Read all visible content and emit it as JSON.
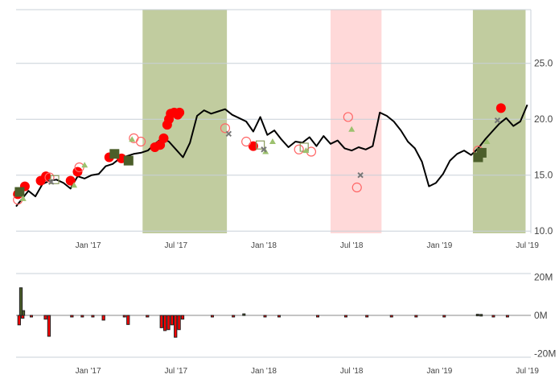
{
  "chart_data": [
    {
      "type": "line",
      "title": "",
      "xlabel": "",
      "ylabel": "",
      "x_ticks": [
        "Jan '17",
        "Jul '17",
        "Jan '18",
        "Jul '18",
        "Jan '19",
        "Jul '19"
      ],
      "x_tick_positions": [
        2017.0,
        2017.5,
        2018.0,
        2018.5,
        2019.0,
        2019.5
      ],
      "xlim": [
        2016.59,
        2019.52
      ],
      "y_ticks": [
        "10.0",
        "15.0",
        "20.0",
        "25.0"
      ],
      "y_tick_values": [
        10,
        15,
        20,
        25
      ],
      "ylim": [
        9.8,
        29.8
      ],
      "grid": true,
      "shaded_regions": [
        {
          "start": 2017.31,
          "end": 2017.79,
          "color": "#c1cc9f"
        },
        {
          "start": 2018.38,
          "end": 2018.67,
          "color": "#ffd9d9"
        },
        {
          "start": 2019.19,
          "end": 2019.49,
          "color": "#c1cc9f"
        }
      ],
      "series": [
        {
          "color": "#000000",
          "x": [
            2016.59,
            2016.62,
            2016.66,
            2016.7,
            2016.74,
            2016.78,
            2016.82,
            2016.86,
            2016.9,
            2016.94,
            2016.98,
            2017.02,
            2017.06,
            2017.1,
            2017.14,
            2017.18,
            2017.22,
            2017.26,
            2017.3,
            2017.34,
            2017.38,
            2017.42,
            2017.46,
            2017.5,
            2017.54,
            2017.58,
            2017.62,
            2017.66,
            2017.7,
            2017.74,
            2017.78,
            2017.82,
            2017.86,
            2017.9,
            2017.94,
            2017.98,
            2018.02,
            2018.06,
            2018.1,
            2018.14,
            2018.18,
            2018.22,
            2018.26,
            2018.3,
            2018.34,
            2018.38,
            2018.42,
            2018.46,
            2018.5,
            2018.54,
            2018.58,
            2018.62,
            2018.66,
            2018.7,
            2018.74,
            2018.78,
            2018.82,
            2018.86,
            2018.9,
            2018.94,
            2018.98,
            2019.02,
            2019.06,
            2019.1,
            2019.14,
            2019.18,
            2019.22,
            2019.26,
            2019.3,
            2019.34,
            2019.38,
            2019.42,
            2019.46,
            2019.5
          ],
          "y": [
            12.2,
            12.8,
            13.6,
            13.1,
            14.2,
            14.5,
            14.6,
            14.3,
            13.8,
            14.9,
            14.7,
            15.0,
            15.1,
            15.8,
            16.0,
            16.5,
            16.7,
            16.9,
            17.0,
            17.2,
            17.8,
            18.3,
            18.0,
            17.3,
            16.6,
            17.9,
            20.3,
            20.8,
            20.5,
            20.7,
            20.9,
            20.4,
            20.1,
            19.8,
            18.9,
            20.2,
            18.6,
            19.0,
            18.2,
            17.5,
            18.0,
            17.9,
            18.4,
            17.6,
            18.5,
            17.8,
            18.1,
            17.4,
            17.2,
            17.5,
            17.3,
            17.6,
            20.6,
            20.3,
            19.8,
            19.0,
            18.0,
            17.4,
            16.2,
            14.0,
            14.3,
            15.1,
            16.3,
            16.9,
            17.2,
            16.8,
            17.4,
            18.2,
            18.9,
            19.6,
            20.1,
            19.4,
            19.8,
            21.3
          ]
        }
      ],
      "markers": [
        {
          "style": "filled-circle",
          "color": "#ff0000",
          "points": [
            [
              2016.6,
              13.3
            ],
            [
              2016.64,
              14.0
            ],
            [
              2016.73,
              14.5
            ],
            [
              2016.76,
              14.9
            ],
            [
              2016.9,
              14.5
            ],
            [
              2016.94,
              15.3
            ],
            [
              2017.12,
              16.6
            ],
            [
              2017.19,
              16.5
            ],
            [
              2017.38,
              17.5
            ],
            [
              2017.41,
              17.7
            ],
            [
              2017.43,
              18.3
            ],
            [
              2017.45,
              19.5
            ],
            [
              2017.46,
              20.0
            ],
            [
              2017.47,
              20.5
            ],
            [
              2017.49,
              20.6
            ],
            [
              2017.51,
              20.4
            ],
            [
              2017.52,
              20.6
            ],
            [
              2017.94,
              17.6
            ],
            [
              2019.35,
              21.0
            ]
          ]
        },
        {
          "style": "hollow-circle",
          "color": "#ff6666",
          "points": [
            [
              2016.6,
              12.8
            ],
            [
              2016.78,
              14.8
            ],
            [
              2016.95,
              15.7
            ],
            [
              2017.26,
              18.3
            ],
            [
              2017.3,
              18.0
            ],
            [
              2017.78,
              19.2
            ],
            [
              2017.9,
              18.0
            ],
            [
              2018.2,
              17.3
            ],
            [
              2018.27,
              17.1
            ],
            [
              2018.48,
              20.2
            ],
            [
              2018.53,
              13.9
            ],
            [
              2019.22,
              17.2
            ]
          ]
        },
        {
          "style": "filled-square",
          "color": "#4b5e2a",
          "points": [
            [
              2016.61,
              13.5
            ],
            [
              2017.15,
              16.9
            ],
            [
              2017.23,
              16.3
            ],
            [
              2019.22,
              16.6
            ],
            [
              2019.24,
              17.0
            ]
          ]
        },
        {
          "style": "hollow-square",
          "color": "#8a9a5b",
          "points": [
            [
              2016.81,
              14.6
            ],
            [
              2017.98,
              17.7
            ],
            [
              2018.23,
              17.5
            ]
          ]
        },
        {
          "style": "triangle",
          "color": "#9cc16e",
          "points": [
            [
              2016.63,
              12.9
            ],
            [
              2016.92,
              14.1
            ],
            [
              2016.98,
              15.9
            ],
            [
              2017.25,
              18.2
            ],
            [
              2018.01,
              17.1
            ],
            [
              2018.05,
              18.0
            ],
            [
              2018.24,
              17.2
            ],
            [
              2018.5,
              19.1
            ],
            [
              2019.27,
              18.0
            ]
          ]
        },
        {
          "style": "cross",
          "color": "#777777",
          "points": [
            [
              2016.79,
              14.4
            ],
            [
              2017.8,
              18.7
            ],
            [
              2018.0,
              17.3
            ],
            [
              2018.55,
              15.0
            ],
            [
              2019.33,
              19.9
            ]
          ]
        }
      ]
    },
    {
      "type": "bar",
      "title": "",
      "xlabel": "",
      "ylabel": "",
      "x_ticks": [
        "Jan '17",
        "Jul '17",
        "Jan '18",
        "Jul '18",
        "Jan '19",
        "Jul '19"
      ],
      "y_ticks": [
        "20M",
        "0M",
        "-20M"
      ],
      "y_tick_values": [
        20,
        0,
        -20
      ],
      "ylim": [
        -22,
        22
      ],
      "value_unit": "M",
      "bars": [
        {
          "x": 2016.6,
          "width": 0.015,
          "value": -5.0,
          "color": "#ff0000"
        },
        {
          "x": 2016.61,
          "width": 0.015,
          "value": 14.5,
          "color": "#4b5e2a"
        },
        {
          "x": 2016.625,
          "width": 0.012,
          "value": 2.5,
          "color": "#4b5e2a"
        },
        {
          "x": 2016.62,
          "width": 0.015,
          "value": -1.5,
          "color": "#ff0000"
        },
        {
          "x": 2016.67,
          "width": 0.012,
          "value": -0.6,
          "color": "#ff0000"
        },
        {
          "x": 2016.75,
          "width": 0.015,
          "value": -2.0,
          "color": "#ff0000"
        },
        {
          "x": 2016.77,
          "width": 0.015,
          "value": -11.0,
          "color": "#ff0000"
        },
        {
          "x": 2016.9,
          "width": 0.015,
          "value": -0.8,
          "color": "#ff0000"
        },
        {
          "x": 2016.96,
          "width": 0.012,
          "value": -0.5,
          "color": "#ff0000"
        },
        {
          "x": 2017.02,
          "width": 0.012,
          "value": -0.5,
          "color": "#ff0000"
        },
        {
          "x": 2017.08,
          "width": 0.015,
          "value": -2.5,
          "color": "#ff0000"
        },
        {
          "x": 2017.2,
          "width": 0.012,
          "value": -0.7,
          "color": "#ff0000"
        },
        {
          "x": 2017.22,
          "width": 0.015,
          "value": -4.8,
          "color": "#ff0000"
        },
        {
          "x": 2017.33,
          "width": 0.015,
          "value": -0.8,
          "color": "#ff0000"
        },
        {
          "x": 2017.41,
          "width": 0.015,
          "value": -6.5,
          "color": "#ff0000"
        },
        {
          "x": 2017.43,
          "width": 0.015,
          "value": -8.0,
          "color": "#ff0000"
        },
        {
          "x": 2017.45,
          "width": 0.015,
          "value": -7.5,
          "color": "#ff0000"
        },
        {
          "x": 2017.47,
          "width": 0.015,
          "value": -5.0,
          "color": "#ff0000"
        },
        {
          "x": 2017.49,
          "width": 0.015,
          "value": -11.5,
          "color": "#ff0000"
        },
        {
          "x": 2017.51,
          "width": 0.015,
          "value": -7.5,
          "color": "#ff0000"
        },
        {
          "x": 2017.53,
          "width": 0.015,
          "value": -2.0,
          "color": "#ff0000"
        },
        {
          "x": 2017.7,
          "width": 0.012,
          "value": -0.4,
          "color": "#ff0000"
        },
        {
          "x": 2017.82,
          "width": 0.012,
          "value": -0.4,
          "color": "#ff0000"
        },
        {
          "x": 2017.88,
          "width": 0.012,
          "value": 0.8,
          "color": "#4b5e2a"
        },
        {
          "x": 2018.0,
          "width": 0.012,
          "value": -0.4,
          "color": "#ff0000"
        },
        {
          "x": 2018.08,
          "width": 0.012,
          "value": -0.4,
          "color": "#ff0000"
        },
        {
          "x": 2018.3,
          "width": 0.012,
          "value": -0.4,
          "color": "#ff0000"
        },
        {
          "x": 2018.46,
          "width": 0.012,
          "value": -0.4,
          "color": "#ff0000"
        },
        {
          "x": 2018.58,
          "width": 0.012,
          "value": -0.4,
          "color": "#ff0000"
        },
        {
          "x": 2018.72,
          "width": 0.012,
          "value": -0.4,
          "color": "#ff0000"
        },
        {
          "x": 2018.86,
          "width": 0.012,
          "value": -0.4,
          "color": "#ff0000"
        },
        {
          "x": 2019.02,
          "width": 0.012,
          "value": -0.4,
          "color": "#ff0000"
        },
        {
          "x": 2019.21,
          "width": 0.012,
          "value": 0.6,
          "color": "#4b5e2a"
        },
        {
          "x": 2019.23,
          "width": 0.012,
          "value": 0.5,
          "color": "#4b5e2a"
        },
        {
          "x": 2019.3,
          "width": 0.012,
          "value": -0.4,
          "color": "#ff0000"
        },
        {
          "x": 2019.38,
          "width": 0.012,
          "value": -0.4,
          "color": "#ff0000"
        }
      ]
    }
  ]
}
